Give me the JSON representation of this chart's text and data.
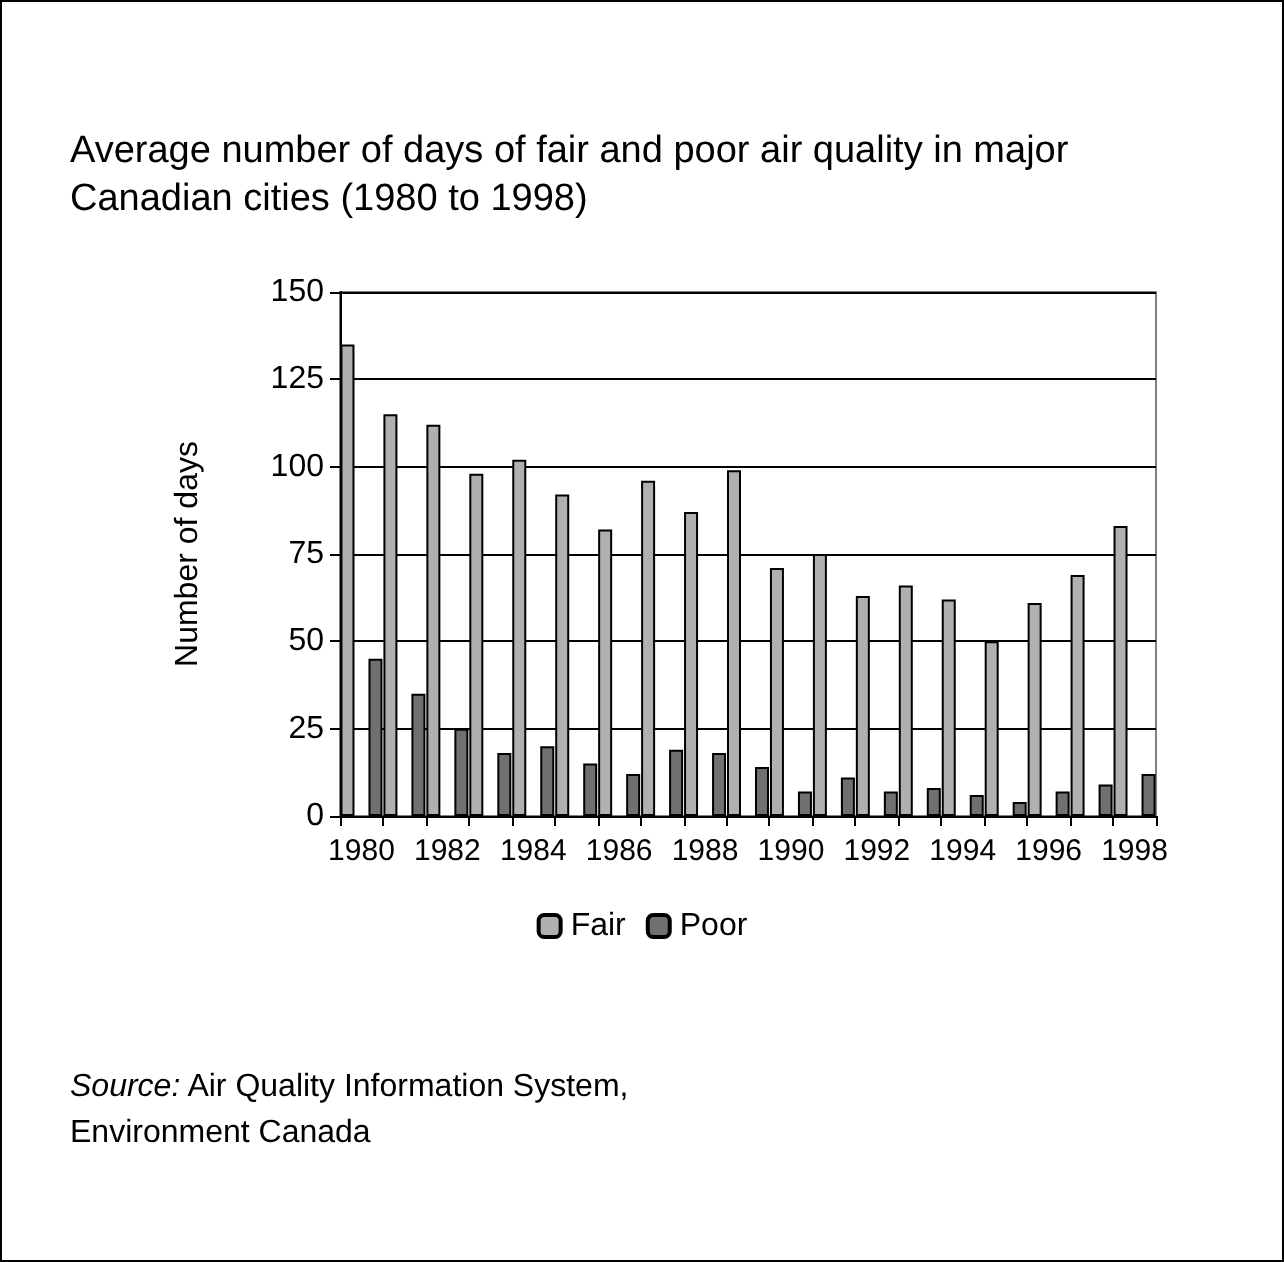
{
  "chart_data": {
    "type": "bar",
    "title": "Average number of days of fair and poor air quality in major Canadian cities (1980 to 1998)",
    "ylabel": "Number of days",
    "categories": [
      "1980",
      null,
      "1982",
      null,
      "1984",
      null,
      "1986",
      null,
      "1988",
      null,
      "1990",
      null,
      "1992",
      null,
      "1994",
      null,
      "1996",
      null,
      "1998"
    ],
    "series": [
      {
        "name": "Fair",
        "color": "#b0b0b0",
        "values": [
          135,
          115,
          112,
          98,
          102,
          92,
          82,
          96,
          87,
          99,
          71,
          75,
          63,
          66,
          62,
          50,
          61,
          69,
          83
        ]
      },
      {
        "name": "Poor",
        "color": "#707070",
        "values": [
          45,
          35,
          25,
          18,
          20,
          15,
          12,
          19,
          18,
          14,
          7,
          11,
          7,
          8,
          6,
          4,
          7,
          9,
          12
        ]
      }
    ],
    "ylim": [
      0,
      150
    ],
    "yticks": [
      0,
      25,
      50,
      75,
      100,
      125,
      150
    ],
    "grid": "y",
    "legend": "bottom",
    "annotations": [
      "Source: Air Quality Information System, Environment Canada"
    ]
  }
}
